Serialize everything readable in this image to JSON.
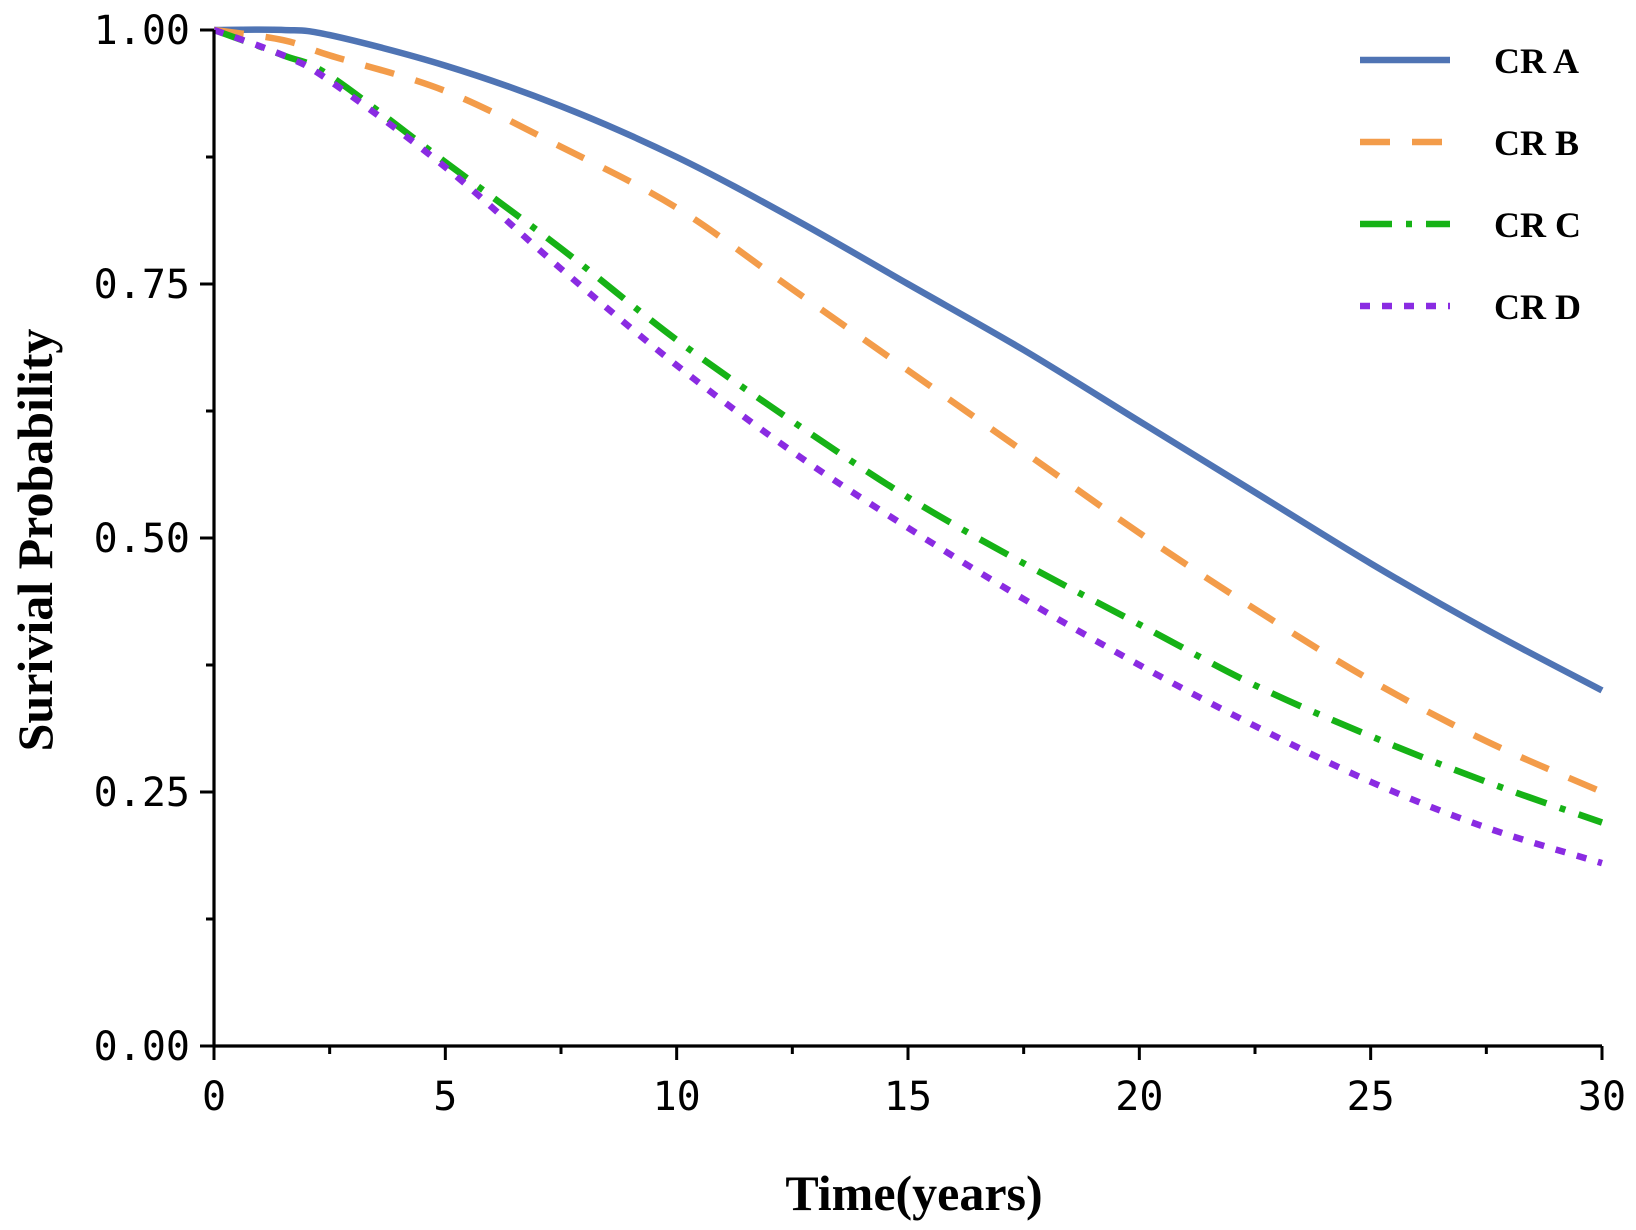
{
  "chart_data": {
    "type": "line",
    "title": "",
    "xlabel": "Time(years)",
    "ylabel": "Surivial Probability",
    "xlim": [
      0,
      30
    ],
    "ylim": [
      0,
      1
    ],
    "x_ticks": [
      0,
      5,
      10,
      15,
      20,
      25,
      30
    ],
    "x_tick_labels": [
      "0",
      "5",
      "10",
      "15",
      "20",
      "25",
      "30"
    ],
    "y_ticks": [
      0,
      0.25,
      0.5,
      0.75,
      1.0
    ],
    "y_tick_labels": [
      "0.00",
      "0.25",
      "0.50",
      "0.75",
      "1.00"
    ],
    "grid": false,
    "legend_position": "top-right",
    "x": [
      0,
      1.5,
      2.5,
      5,
      7.5,
      10,
      12.5,
      15,
      17.5,
      20,
      22.5,
      25,
      27.5,
      30
    ],
    "series": [
      {
        "name": "CR A",
        "color": "#4f74b4",
        "style": "solid",
        "values": [
          1.0,
          1.0,
          0.995,
          0.965,
          0.925,
          0.875,
          0.815,
          0.75,
          0.685,
          0.615,
          0.545,
          0.475,
          0.41,
          0.35
        ]
      },
      {
        "name": "CR B",
        "color": "#f39c4a",
        "style": "dashed",
        "values": [
          1.0,
          0.99,
          0.975,
          0.94,
          0.885,
          0.825,
          0.745,
          0.665,
          0.585,
          0.505,
          0.43,
          0.36,
          0.3,
          0.25
        ]
      },
      {
        "name": "CR C",
        "color": "#16b216",
        "style": "dashdot",
        "values": [
          1.0,
          0.975,
          0.955,
          0.87,
          0.785,
          0.695,
          0.615,
          0.54,
          0.475,
          0.415,
          0.355,
          0.305,
          0.26,
          0.22
        ]
      },
      {
        "name": "CR D",
        "color": "#8a2be2",
        "style": "dotted",
        "values": [
          1.0,
          0.975,
          0.95,
          0.865,
          0.765,
          0.67,
          0.585,
          0.51,
          0.44,
          0.375,
          0.315,
          0.26,
          0.215,
          0.18
        ]
      }
    ]
  }
}
